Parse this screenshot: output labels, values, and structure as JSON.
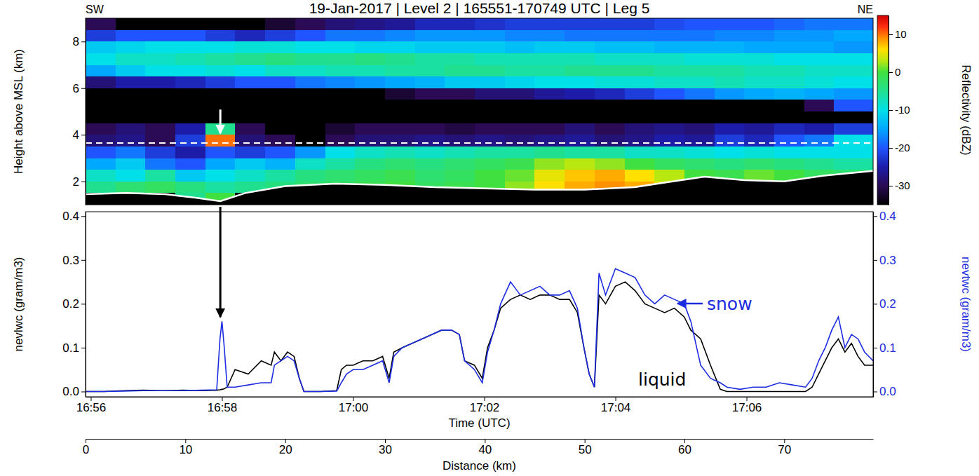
{
  "chart_data": [
    {
      "type": "heatmap",
      "title": "19-Jan-2017 | Level 2 | 165551-170749 UTC | Leg 5",
      "annotations": [
        {
          "text": "SW"
        },
        {
          "text": "NE"
        }
      ],
      "ylabel": "Height above MSL (km)",
      "xlim": [
        0,
        78.9
      ],
      "ylim": [
        1,
        9
      ],
      "yticks": [
        2,
        4,
        6,
        8
      ],
      "tick_labels": "y",
      "x_edges": [
        0,
        3,
        6,
        9,
        12,
        15,
        18,
        21,
        24,
        27,
        30,
        33,
        36,
        39,
        42,
        45,
        48,
        51,
        54,
        57,
        60,
        63,
        66,
        69,
        72,
        75,
        78.9
      ],
      "y_edges": [
        1,
        1.5,
        2,
        2.5,
        3,
        3.5,
        4,
        4.5,
        5,
        5.5,
        6,
        6.5,
        7,
        7.5,
        8,
        8.5,
        9
      ],
      "cells": [
        [
          null,
          null,
          null,
          -5,
          0,
          null,
          null,
          null,
          null,
          null,
          null,
          null,
          null,
          null,
          null,
          null,
          null,
          null,
          null,
          null,
          null,
          null,
          null,
          null,
          null,
          null
        ],
        [
          -5,
          -3,
          -2,
          -4,
          -6,
          -5,
          -4,
          -3,
          -2,
          -1,
          0,
          -2,
          -1,
          0,
          2,
          6,
          8,
          9,
          8,
          5,
          null,
          null,
          null,
          null,
          null,
          null
        ],
        [
          -8,
          -10,
          -6,
          -12,
          -10,
          -8,
          -6,
          -4,
          -3,
          -2,
          -1,
          -3,
          -2,
          0,
          1,
          5,
          7,
          8,
          6,
          3,
          0,
          -1,
          1,
          0,
          -2,
          -3
        ],
        [
          -15,
          -12,
          -18,
          -20,
          -15,
          -12,
          -14,
          -8,
          -6,
          -4,
          -3,
          -4,
          -3,
          -2,
          -1,
          2,
          3,
          2,
          0,
          -2,
          -3,
          -4,
          -3,
          -4,
          -5,
          -6
        ],
        [
          -20,
          -18,
          -22,
          -25,
          -20,
          -22,
          -20,
          -16,
          -10,
          -8,
          -7,
          -8,
          -7,
          -6,
          -6,
          -5,
          -6,
          -6,
          -8,
          -8,
          -9,
          -10,
          -9,
          -10,
          -10,
          -10
        ],
        [
          -28,
          -27,
          -30,
          -22,
          10,
          -28,
          -30,
          null,
          -30,
          -28,
          -28,
          -27,
          -28,
          -27,
          -28,
          -27,
          -26,
          -28,
          -27,
          -25,
          -26,
          -22,
          -24,
          -20,
          -18,
          -10
        ],
        [
          -30,
          -28,
          -30,
          -25,
          -5,
          -30,
          null,
          null,
          -32,
          -30,
          -30,
          -30,
          -31,
          -30,
          -30,
          -30,
          -28,
          -30,
          -28,
          -27,
          -28,
          -25,
          -26,
          -24,
          -25,
          -22
        ],
        [
          null,
          null,
          null,
          null,
          null,
          null,
          null,
          null,
          null,
          null,
          null,
          null,
          null,
          null,
          null,
          null,
          null,
          null,
          null,
          null,
          null,
          null,
          null,
          null,
          null,
          null
        ],
        [
          null,
          null,
          null,
          null,
          null,
          null,
          null,
          null,
          null,
          null,
          null,
          null,
          null,
          null,
          null,
          null,
          null,
          null,
          null,
          null,
          null,
          null,
          null,
          null,
          -30,
          -20
        ],
        [
          null,
          null,
          null,
          null,
          null,
          null,
          null,
          null,
          null,
          null,
          -32,
          -30,
          -30,
          -28,
          -28,
          -26,
          -25,
          -24,
          -22,
          -20,
          -18,
          -16,
          -15,
          -14,
          -15,
          -16
        ],
        [
          -28,
          -25,
          -25,
          -24,
          -22,
          -20,
          -20,
          -18,
          -17,
          -16,
          -15,
          -14,
          -12,
          -12,
          -11,
          -10,
          -10,
          -9,
          -9,
          -8,
          -8,
          -7,
          -8,
          -8,
          -9,
          -10
        ],
        [
          -15,
          -12,
          -10,
          -10,
          -9,
          -10,
          -8,
          -8,
          -7,
          -7,
          -6,
          -6,
          -5,
          -5,
          -6,
          -6,
          -5,
          -5,
          -5,
          -6,
          -6,
          -6,
          -7,
          -7,
          -8,
          -8
        ],
        [
          -10,
          -8,
          -8,
          -7,
          -6,
          -5,
          -4,
          -5,
          -5,
          -4,
          -5,
          -6,
          -6,
          -7,
          -7,
          -7,
          -7,
          -8,
          -8,
          -8,
          -9,
          -9,
          -9,
          -10,
          -10,
          -10
        ],
        [
          -12,
          -11,
          -10,
          -10,
          -10,
          -9,
          -9,
          -10,
          -10,
          -11,
          -11,
          -12,
          -12,
          -12,
          -13,
          -12,
          -12,
          -13,
          -13,
          -14,
          -14,
          -14,
          -15,
          -15,
          -15,
          -16
        ],
        [
          -22,
          -20,
          -20,
          -20,
          -22,
          -24,
          -22,
          -20,
          -18,
          -18,
          -17,
          -16,
          -16,
          -16,
          -17,
          -17,
          -18,
          -18,
          -18,
          -18,
          -18,
          -17,
          -17,
          -16,
          -16,
          -15
        ],
        [
          -30,
          null,
          null,
          null,
          null,
          null,
          -32,
          -30,
          -28,
          -27,
          -26,
          -24,
          -24,
          -23,
          -22,
          -22,
          -22,
          -22,
          -22,
          -21,
          -20,
          -20,
          -20,
          -19,
          -18,
          -18
        ]
      ],
      "terrain": {
        "x": [
          0,
          4,
          8,
          11,
          13.5,
          16,
          20,
          25,
          30,
          35,
          40,
          45,
          50,
          55,
          58,
          62,
          66,
          70,
          74,
          78.9
        ],
        "values": [
          1.45,
          1.5,
          1.45,
          1.3,
          1.15,
          1.5,
          1.8,
          1.9,
          1.85,
          1.75,
          1.7,
          1.65,
          1.65,
          1.75,
          1.95,
          2.2,
          2.05,
          2.0,
          2.25,
          2.45
        ]
      },
      "flight_level": 3.65,
      "colorbar": {
        "label": "Reflectivity (dBZ)",
        "range": [
          -35,
          15
        ],
        "ticks": [
          10,
          0,
          -10,
          -20,
          -30
        ]
      }
    },
    {
      "type": "line",
      "xlabel": "Time (UTC)",
      "ylabel": "nevlwc (gram/m3)",
      "y2label": "nevtwc (gram/m3)",
      "x2label": "Distance (km)",
      "xlim": [
        55.92,
        67.93
      ],
      "xticks": [
        {
          "value": 56,
          "label": "16:56"
        },
        {
          "value": 58,
          "label": "16:58"
        },
        {
          "value": 60,
          "label": "17:00"
        },
        {
          "value": 62,
          "label": "17:02"
        },
        {
          "value": 64,
          "label": "17:04"
        },
        {
          "value": 66,
          "label": "17:06"
        }
      ],
      "x2lim": [
        0,
        78.9
      ],
      "x2ticks": [
        0,
        10,
        20,
        30,
        40,
        50,
        60,
        70
      ],
      "ylim": [
        -0.012,
        0.41
      ],
      "yticks": [
        {
          "value": 0,
          "label": "0.0"
        },
        0.1,
        0.2,
        0.3,
        0.4
      ],
      "y2lim": [
        -0.012,
        0.41
      ],
      "y2ticks": [
        {
          "value": 0,
          "label": "0.0"
        },
        0.1,
        0.2,
        0.3,
        0.4
      ],
      "x": [
        55.92,
        56.2,
        56.5,
        56.8,
        57.1,
        57.4,
        57.7,
        57.92,
        57.97,
        58.0,
        58.03,
        58.08,
        58.2,
        58.4,
        58.6,
        58.75,
        58.8,
        58.9,
        59.0,
        59.1,
        59.18,
        59.25,
        59.5,
        59.75,
        59.82,
        59.9,
        60.0,
        60.15,
        60.3,
        60.45,
        60.55,
        60.62,
        60.75,
        60.9,
        61.05,
        61.2,
        61.35,
        61.5,
        61.62,
        61.7,
        61.85,
        61.97,
        62.05,
        62.15,
        62.25,
        62.4,
        62.55,
        62.7,
        62.85,
        63.0,
        63.15,
        63.3,
        63.42,
        63.52,
        63.6,
        63.68,
        63.75,
        63.85,
        64.0,
        64.15,
        64.3,
        64.45,
        64.6,
        64.75,
        64.9,
        65.05,
        65.15,
        65.3,
        65.45,
        65.6,
        65.7,
        65.9,
        66.1,
        66.3,
        66.5,
        66.7,
        66.9,
        67.0,
        67.1,
        67.2,
        67.3,
        67.4,
        67.5,
        67.6,
        67.7,
        67.8,
        67.93
      ],
      "series": [
        {
          "color": "#000000",
          "values": [
            0,
            0,
            0.002,
            0.003,
            0.002,
            0.003,
            0.002,
            0.003,
            0.004,
            0.005,
            0.006,
            0.01,
            0.05,
            0.04,
            0.07,
            0.06,
            0.09,
            0.07,
            0.09,
            0.08,
            0.03,
            0,
            0,
            0.002,
            0.05,
            0.06,
            0.06,
            0.07,
            0.07,
            0.08,
            0.03,
            0.09,
            0.1,
            0.11,
            0.12,
            0.13,
            0.14,
            0.14,
            0.13,
            0.07,
            0.06,
            0.03,
            0.1,
            0.14,
            0.19,
            0.21,
            0.22,
            0.21,
            0.22,
            0.22,
            0.21,
            0.21,
            0.18,
            0.1,
            0.04,
            0.01,
            0.22,
            0.2,
            0.24,
            0.25,
            0.23,
            0.2,
            0.19,
            0.18,
            0.19,
            0.17,
            0.14,
            0.12,
            0.06,
            0.005,
            0,
            0,
            0,
            0,
            0,
            0,
            0,
            0.01,
            0.04,
            0.07,
            0.1,
            0.12,
            0.09,
            0.11,
            0.08,
            0.06,
            0.06
          ]
        },
        {
          "color": "#1c2ce0",
          "axis": "y2",
          "values": [
            0,
            0,
            0.001,
            0.002,
            0.002,
            0.002,
            0.003,
            0.004,
            0.12,
            0.16,
            0.11,
            0.01,
            0.01,
            0.015,
            0.02,
            0.02,
            0.06,
            0.07,
            0.08,
            0.07,
            0.03,
            0,
            0,
            0.001,
            0.02,
            0.04,
            0.05,
            0.05,
            0.06,
            0.07,
            0.02,
            0.08,
            0.1,
            0.11,
            0.12,
            0.13,
            0.14,
            0.14,
            0.13,
            0.07,
            0.05,
            0.02,
            0.09,
            0.14,
            0.2,
            0.25,
            0.22,
            0.23,
            0.24,
            0.22,
            0.22,
            0.23,
            0.19,
            0.1,
            0.04,
            0.01,
            0.27,
            0.22,
            0.28,
            0.27,
            0.26,
            0.22,
            0.2,
            0.22,
            0.21,
            0.2,
            0.16,
            0.06,
            0.03,
            0.02,
            0.01,
            0.005,
            0.01,
            0.01,
            0.02,
            0.015,
            0.01,
            0.03,
            0.07,
            0.1,
            0.14,
            0.17,
            0.1,
            0.13,
            0.12,
            0.09,
            0.07
          ]
        }
      ],
      "annotations": [
        {
          "text": "snow",
          "color": "#1c2ce0"
        },
        {
          "text": "liquid"
        }
      ]
    }
  ]
}
